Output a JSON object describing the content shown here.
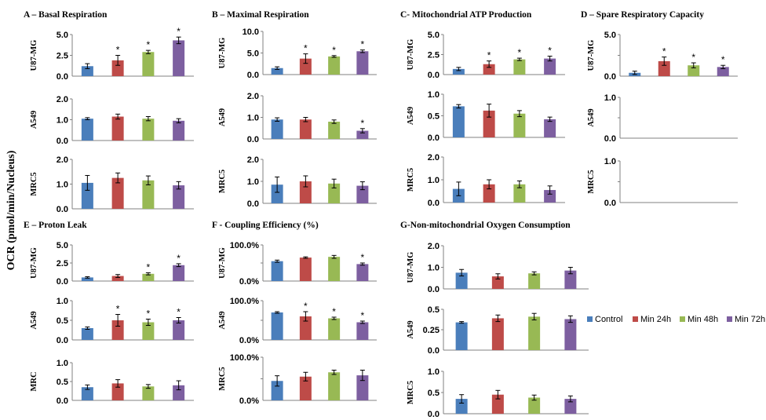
{
  "y_axis_label": "OCR (pmol/min/Nucleus)",
  "colors": {
    "control": "#4a7ebb",
    "min24": "#be4b48",
    "min48": "#98b954",
    "min72": "#7d5fa0"
  },
  "chart_data": [
    {
      "title": "A – Basal Respiration",
      "type": "bar",
      "categories": [
        "Control",
        "Min 24h",
        "Min 48h",
        "Min 72h"
      ],
      "panels": [
        {
          "row": "U87-MG",
          "ylim": [
            0,
            5
          ],
          "ticks": [
            "5.0",
            "2.5",
            "0.0"
          ],
          "values": [
            1.2,
            1.9,
            2.9,
            4.3
          ],
          "errors": [
            0.3,
            0.6,
            0.2,
            0.4
          ],
          "sig": [
            "",
            "*",
            "*",
            "*"
          ]
        },
        {
          "row": "A549",
          "ylim": [
            0,
            2
          ],
          "ticks": [
            "2.0",
            "1.0",
            "0.0"
          ],
          "values": [
            1.05,
            1.15,
            1.05,
            0.95
          ],
          "errors": [
            0.05,
            0.12,
            0.1,
            0.1
          ],
          "sig": [
            "",
            "",
            "",
            ""
          ]
        },
        {
          "row": "MRC5",
          "ylim": [
            0,
            2
          ],
          "ticks": [
            "2.0",
            "1.0",
            "0.0"
          ],
          "values": [
            1.05,
            1.25,
            1.15,
            0.95
          ],
          "errors": [
            0.3,
            0.2,
            0.18,
            0.15
          ],
          "sig": [
            "",
            "",
            "",
            ""
          ]
        }
      ]
    },
    {
      "title": "B – Maximal Respiration",
      "type": "bar",
      "categories": [
        "Control",
        "Min 24h",
        "Min 48h",
        "Min 72h"
      ],
      "panels": [
        {
          "row": "U87-MG",
          "ylim": [
            0,
            10
          ],
          "ticks": [
            "10.0",
            "5.0",
            "0.0"
          ],
          "values": [
            1.5,
            3.7,
            4.2,
            5.4
          ],
          "errors": [
            0.3,
            1.1,
            0.2,
            0.3
          ],
          "sig": [
            "",
            "*",
            "*",
            "*"
          ]
        },
        {
          "row": "A549",
          "ylim": [
            0,
            2
          ],
          "ticks": [
            "2.0",
            "1.0",
            "0.0"
          ],
          "values": [
            0.9,
            0.9,
            0.8,
            0.38
          ],
          "errors": [
            0.08,
            0.1,
            0.08,
            0.1
          ],
          "sig": [
            "",
            "",
            "",
            "*"
          ]
        },
        {
          "row": "MRC5",
          "ylim": [
            0,
            2
          ],
          "ticks": [
            "2.0",
            "1.0",
            "0.0"
          ],
          "values": [
            0.85,
            1.0,
            0.9,
            0.8
          ],
          "errors": [
            0.35,
            0.25,
            0.2,
            0.18
          ],
          "sig": [
            "",
            "",
            "",
            ""
          ]
        }
      ]
    },
    {
      "title": "C- Mitochondrial ATP Production",
      "type": "bar",
      "categories": [
        "Control",
        "Min 24h",
        "Min 48h",
        "Min 72h"
      ],
      "panels": [
        {
          "row": "U87-MG",
          "ylim": [
            0,
            5
          ],
          "ticks": [
            "5.0",
            "2.5",
            "0.0"
          ],
          "values": [
            0.7,
            1.3,
            1.9,
            2.0
          ],
          "errors": [
            0.2,
            0.4,
            0.15,
            0.3
          ],
          "sig": [
            "",
            "*",
            "*",
            "*"
          ]
        },
        {
          "row": "A549",
          "ylim": [
            0,
            1
          ],
          "ticks": [
            "1.0",
            "0.5",
            "0.0"
          ],
          "values": [
            0.72,
            0.62,
            0.55,
            0.42
          ],
          "errors": [
            0.04,
            0.15,
            0.07,
            0.05
          ],
          "sig": [
            "",
            "",
            "",
            ""
          ]
        },
        {
          "row": "MRC5",
          "ylim": [
            0,
            2
          ],
          "ticks": [
            "2.0",
            "1.0",
            "0.0"
          ],
          "values": [
            0.6,
            0.8,
            0.8,
            0.55
          ],
          "errors": [
            0.3,
            0.2,
            0.15,
            0.18
          ],
          "sig": [
            "",
            "",
            "",
            ""
          ]
        }
      ]
    },
    {
      "title": "D – Spare Respiratory Capacity",
      "type": "bar",
      "categories": [
        "Control",
        "Min 24h",
        "Min 48h",
        "Min 72h"
      ],
      "panels": [
        {
          "row": "U87-MG",
          "ylim": [
            0,
            5
          ],
          "ticks": [
            "5.0",
            "",
            "0.0"
          ],
          "values": [
            0.4,
            1.8,
            1.3,
            1.1
          ],
          "errors": [
            0.2,
            0.5,
            0.3,
            0.2
          ],
          "sig": [
            "",
            "*",
            "*",
            "*"
          ]
        },
        {
          "row": "A549",
          "ylim": [
            0,
            1
          ],
          "ticks": [
            "1.0",
            "",
            "0.0"
          ],
          "values": [],
          "errors": [],
          "sig": []
        },
        {
          "row": "MRC5",
          "ylim": [
            0,
            1
          ],
          "ticks": [
            "1.0",
            "",
            "0.0"
          ],
          "values": [],
          "errors": [],
          "sig": []
        }
      ]
    },
    {
      "title": "E – Proton Leak",
      "type": "bar",
      "categories": [
        "Control",
        "Min 24h",
        "Min 48h",
        "Min 72h"
      ],
      "panels": [
        {
          "row": "U87-MG",
          "ylim": [
            0,
            5
          ],
          "ticks": [
            "5.0",
            "2.5",
            "0.0"
          ],
          "values": [
            0.5,
            0.7,
            1.0,
            2.2
          ],
          "errors": [
            0.1,
            0.2,
            0.15,
            0.2
          ],
          "sig": [
            "",
            "",
            "*",
            "*"
          ]
        },
        {
          "row": "A549",
          "ylim": [
            0,
            1
          ],
          "ticks": [
            "1.0",
            "0.5",
            "0.0"
          ],
          "values": [
            0.3,
            0.5,
            0.45,
            0.5
          ],
          "errors": [
            0.03,
            0.15,
            0.08,
            0.07
          ],
          "sig": [
            "",
            "*",
            "*",
            "*"
          ]
        },
        {
          "row": "MRC",
          "ylim": [
            0,
            1
          ],
          "ticks": [
            "1.0",
            "0.5",
            "0.0"
          ],
          "values": [
            0.35,
            0.45,
            0.37,
            0.4
          ],
          "errors": [
            0.06,
            0.1,
            0.05,
            0.12
          ],
          "sig": [
            "",
            "",
            "",
            ""
          ]
        }
      ]
    },
    {
      "title": "F - Coupling Efficiency (%)",
      "type": "bar",
      "categories": [
        "Control",
        "Min 24h",
        "Min 48h",
        "Min 72h"
      ],
      "panels": [
        {
          "row": "U87-MG",
          "ylim": [
            0,
            100
          ],
          "ticks": [
            "100.0%",
            "",
            "0.0%"
          ],
          "values": [
            55,
            65,
            67,
            47
          ],
          "errors": [
            3,
            2,
            4,
            3
          ],
          "sig": [
            "",
            "",
            "",
            "*"
          ]
        },
        {
          "row": "A549",
          "ylim": [
            0,
            100
          ],
          "ticks": [
            "100.0%",
            "",
            "0.0%"
          ],
          "values": [
            70,
            60,
            55,
            45
          ],
          "errors": [
            2,
            12,
            3,
            3
          ],
          "sig": [
            "",
            "*",
            "*",
            "*"
          ]
        },
        {
          "row": "MRC5",
          "ylim": [
            0,
            100
          ],
          "ticks": [
            "100.0%",
            "",
            "0.0%"
          ],
          "values": [
            45,
            55,
            65,
            58
          ],
          "errors": [
            12,
            10,
            5,
            12
          ],
          "sig": [
            "",
            "",
            "",
            ""
          ]
        }
      ]
    },
    {
      "title": "G-Non-mitochondrial Oxygen Consumption",
      "type": "bar",
      "categories": [
        "Control",
        "Min 24h",
        "Min 48h",
        "Min 72h"
      ],
      "panels": [
        {
          "row": "U87-MG",
          "ylim": [
            0,
            2
          ],
          "ticks": [
            "2.0",
            "1.0",
            "0.0"
          ],
          "values": [
            0.75,
            0.58,
            0.72,
            0.85
          ],
          "errors": [
            0.15,
            0.12,
            0.07,
            0.15
          ],
          "sig": [
            "",
            "",
            "",
            ""
          ]
        },
        {
          "row": "A549",
          "ylim": [
            0,
            0.5
          ],
          "ticks": [
            "0.5",
            "0.25",
            "0.0"
          ],
          "values": [
            0.34,
            0.39,
            0.41,
            0.38
          ],
          "errors": [
            0.01,
            0.04,
            0.04,
            0.04
          ],
          "sig": [
            "",
            "",
            "",
            ""
          ]
        },
        {
          "row": "MRC5",
          "ylim": [
            0,
            1
          ],
          "ticks": [
            "1.0",
            "0.5",
            "0.0"
          ],
          "values": [
            0.35,
            0.45,
            0.38,
            0.35
          ],
          "errors": [
            0.1,
            0.1,
            0.06,
            0.07
          ],
          "sig": [
            "",
            "",
            "",
            ""
          ]
        }
      ]
    }
  ],
  "legend": [
    {
      "label": "Control",
      "color": "#4a7ebb"
    },
    {
      "label": "Min 24h",
      "color": "#be4b48"
    },
    {
      "label": "Min 48h",
      "color": "#98b954"
    },
    {
      "label": "Min 72h",
      "color": "#7d5fa0"
    }
  ]
}
